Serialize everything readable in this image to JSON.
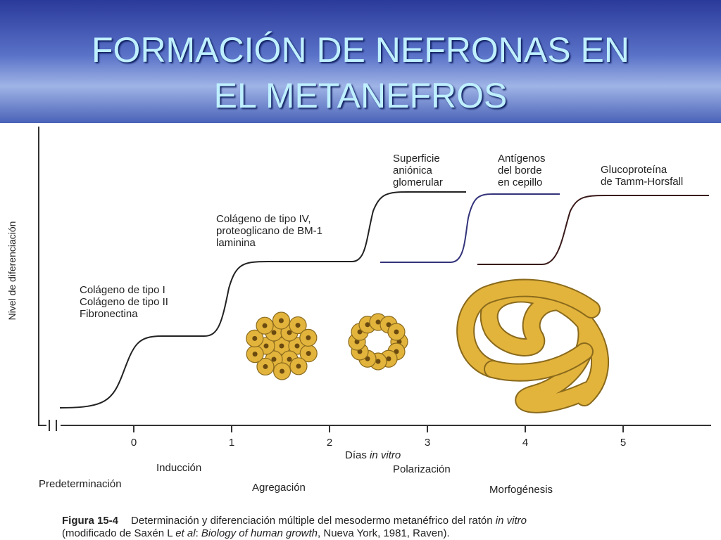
{
  "title": [
    "FORMACIÓN DE NEFRONAS EN",
    "EL METANEFROS"
  ],
  "figure": {
    "y_axis_label": "Nivel de diferenciación",
    "x_axis_label": [
      "Días",
      "in vitro"
    ],
    "x_ticks": [
      "0",
      "1",
      "2",
      "3",
      "4",
      "5"
    ],
    "curve_labels": [
      [
        "Colágeno de tipo I",
        "Colágeno de tipo II",
        "Fibronectina"
      ],
      [
        "Colágeno de tipo IV,",
        "proteoglicano de BM-1",
        "laminina"
      ],
      [
        "Superficie",
        "aniónica",
        "glomerular"
      ],
      [
        "Antígenos",
        "del borde",
        "en cepillo"
      ],
      [
        "Glucoproteína",
        "de Tamm-Horsfall"
      ]
    ],
    "stages": [
      "Predeterminación",
      "Inducción",
      "Agregación",
      "Polarización",
      "Morfogénesis"
    ]
  },
  "caption": {
    "line1": [
      "Figura 15-4",
      "Determinación y diferenciación múltiple del mesodermo metanéfrico del ratón",
      "in vitro"
    ],
    "line2": [
      "(modificado de Saxén L",
      "et al",
      ":",
      "Biology of human growth",
      ", Nueva York, 1981, Raven)."
    ]
  }
}
